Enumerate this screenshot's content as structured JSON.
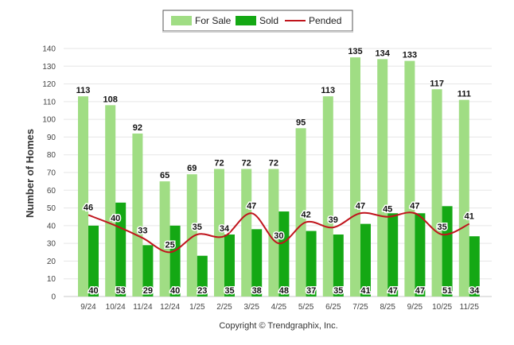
{
  "chart_data": {
    "type": "bar",
    "title": "",
    "xlabel": "",
    "ylabel": "Number of Homes",
    "ylim": [
      0,
      140
    ],
    "yticks": [
      0,
      10,
      20,
      30,
      40,
      50,
      60,
      70,
      80,
      90,
      100,
      110,
      120,
      130,
      140
    ],
    "categories": [
      "9/24",
      "10/24",
      "11/24",
      "12/24",
      "1/25",
      "2/25",
      "3/25",
      "4/25",
      "5/25",
      "6/25",
      "7/25",
      "8/25",
      "9/25",
      "10/25",
      "11/25"
    ],
    "series": [
      {
        "name": "For Sale",
        "kind": "bar",
        "color": "#a0dd84",
        "values": [
          113,
          108,
          92,
          65,
          69,
          72,
          72,
          72,
          95,
          113,
          135,
          134,
          133,
          117,
          111
        ]
      },
      {
        "name": "Sold",
        "kind": "bar",
        "color": "#14a814",
        "values": [
          40,
          53,
          29,
          40,
          23,
          35,
          38,
          48,
          37,
          35,
          41,
          47,
          47,
          51,
          34
        ]
      },
      {
        "name": "Pended",
        "kind": "line",
        "color": "#c0141c",
        "values": [
          46,
          40,
          33,
          25,
          35,
          34,
          47,
          30,
          42,
          39,
          47,
          45,
          47,
          35,
          41
        ]
      }
    ],
    "legend": {
      "position": "top-center",
      "entries": [
        "For Sale",
        "Sold",
        "Pended"
      ]
    },
    "grid": true
  },
  "footer": {
    "copyright": "Copyright © Trendgraphix, Inc."
  }
}
